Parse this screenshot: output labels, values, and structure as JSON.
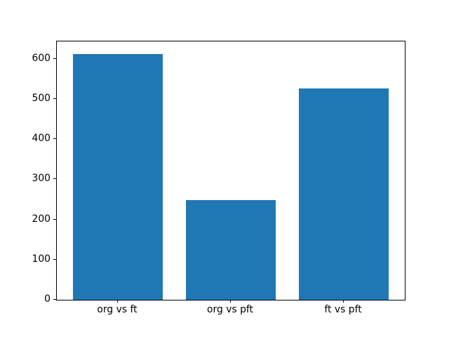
{
  "figure": {
    "background_color": "#ffffff",
    "axes_background_color": "#ffffff",
    "spine_color": "#000000",
    "tick_color": "#000000"
  },
  "chart_data": {
    "type": "bar",
    "categories": [
      "org vs ft",
      "org vs pft",
      "ft vs pft"
    ],
    "values": [
      613,
      248,
      526
    ],
    "title": "",
    "xlabel": "",
    "ylabel": "",
    "ylim": [
      0,
      643.65
    ],
    "yticks": [
      0,
      100,
      200,
      300,
      400,
      500,
      600
    ],
    "bar_color": "#1f77b4",
    "bar_width_fraction": 0.8,
    "x_margin_fraction": 0.05,
    "grid": false,
    "legend": false
  }
}
